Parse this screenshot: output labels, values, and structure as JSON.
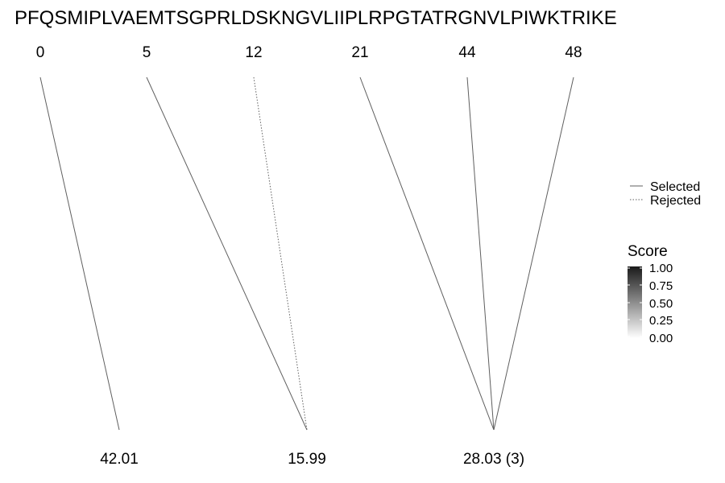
{
  "sequence": "PFQSMIPLVAEMTSGPRLDSKNGVLIIPLRPGTATRGNVLPIWKTRIKE",
  "positions": [
    {
      "label": "0"
    },
    {
      "label": "5"
    },
    {
      "label": "12"
    },
    {
      "label": "21"
    },
    {
      "label": "44"
    },
    {
      "label": "48"
    }
  ],
  "targets": [
    {
      "label": "42.01"
    },
    {
      "label": "15.99"
    },
    {
      "label": "28.03 (3)"
    }
  ],
  "links": [
    {
      "from": 0,
      "to": 0,
      "status": "selected"
    },
    {
      "from": 1,
      "to": 1,
      "status": "selected"
    },
    {
      "from": 2,
      "to": 1,
      "status": "rejected"
    },
    {
      "from": 3,
      "to": 2,
      "status": "selected"
    },
    {
      "from": 4,
      "to": 2,
      "status": "selected"
    },
    {
      "from": 5,
      "to": 2,
      "status": "selected"
    }
  ],
  "legend": {
    "selected_label": "Selected",
    "rejected_label": "Rejected"
  },
  "score_legend": {
    "title": "Score",
    "ticks": [
      "1.00",
      "0.75",
      "0.50",
      "0.25",
      "0.00"
    ],
    "color_high": "#1a1a1a",
    "color_low": "#ffffff"
  },
  "colors": {
    "line": "#5f5f5f",
    "text": "#000000"
  }
}
